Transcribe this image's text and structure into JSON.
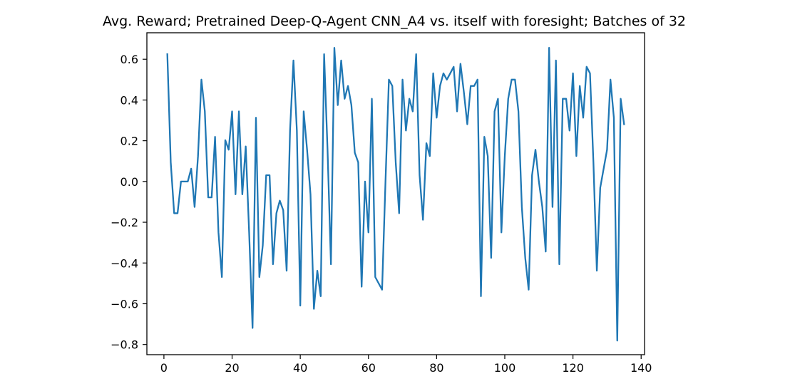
{
  "chart_data": {
    "type": "line",
    "title": "Avg. Reward; Pretrained Deep-Q-Agent CNN_A4 vs. itself with foresight; Batches of 32",
    "xlabel": "",
    "ylabel": "",
    "xlim": [
      -5,
      141
    ],
    "ylim": [
      -0.85,
      0.73
    ],
    "x_ticks": [
      0,
      20,
      40,
      60,
      80,
      100,
      120,
      140
    ],
    "x_tick_labels": [
      "0",
      "20",
      "40",
      "60",
      "80",
      "100",
      "120",
      "140"
    ],
    "y_ticks": [
      0.6,
      0.4,
      0.2,
      0.0,
      -0.2,
      -0.4,
      -0.6,
      -0.8
    ],
    "y_tick_labels": [
      "0.6",
      "0.4",
      "0.2",
      "0.0",
      "−0.2",
      "−0.4",
      "−0.6",
      "−0.8"
    ],
    "grid": false,
    "legend": "none",
    "line_color": "#1f77b4",
    "series": [
      {
        "x_start": 1,
        "values": [
          0.625,
          0.094,
          -0.156,
          -0.156,
          0.0,
          0.0,
          0.0,
          0.063,
          -0.125,
          0.125,
          0.5,
          0.344,
          -0.078,
          -0.078,
          0.219,
          -0.25,
          -0.469,
          0.203,
          0.156,
          0.344,
          -0.063,
          0.344,
          -0.063,
          0.172,
          -0.25,
          -0.719,
          0.313,
          -0.469,
          -0.313,
          0.031,
          0.031,
          -0.406,
          -0.156,
          -0.094,
          -0.141,
          -0.438,
          0.25,
          0.594,
          0.25,
          -0.609,
          0.344,
          0.156,
          -0.063,
          -0.625,
          -0.438,
          -0.563,
          0.625,
          0.156,
          -0.406,
          0.656,
          0.375,
          0.594,
          0.406,
          0.469,
          0.375,
          0.141,
          0.094,
          -0.516,
          0.0,
          -0.25,
          0.406,
          -0.469,
          -0.5,
          -0.531,
          0.0,
          0.5,
          0.469,
          0.094,
          -0.156,
          0.5,
          0.25,
          0.406,
          0.344,
          0.625,
          0.031,
          -0.188,
          0.188,
          0.125,
          0.531,
          0.313,
          0.469,
          0.531,
          0.5,
          0.531,
          0.563,
          0.344,
          0.578,
          0.438,
          0.281,
          0.469,
          0.469,
          0.5,
          -0.563,
          0.219,
          0.125,
          -0.375,
          0.344,
          0.406,
          -0.25,
          0.125,
          0.406,
          0.5,
          0.5,
          0.344,
          -0.125,
          -0.375,
          -0.531,
          0.031,
          0.156,
          0.0,
          -0.125,
          -0.344,
          0.656,
          -0.125,
          0.594,
          -0.406,
          0.406,
          0.406,
          0.25,
          0.531,
          0.125,
          0.469,
          0.313,
          0.563,
          0.531,
          0.094,
          -0.438,
          -0.031,
          0.063,
          0.156,
          0.5,
          0.313,
          -0.781,
          0.406,
          0.281
        ]
      }
    ]
  }
}
